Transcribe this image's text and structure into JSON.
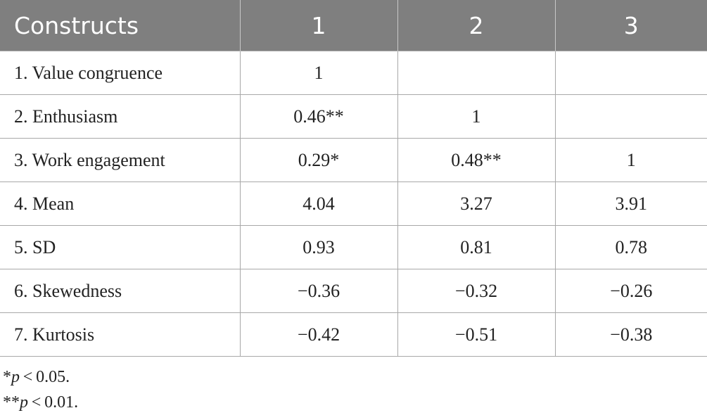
{
  "table": {
    "header": [
      "Constructs",
      "1",
      "2",
      "3"
    ],
    "rows": [
      [
        "1. Value congruence",
        "1",
        null,
        null
      ],
      [
        "2. Enthusiasm",
        "0.46**",
        "1",
        null
      ],
      [
        "3. Work engagement",
        "0.29*",
        "0.48**",
        "1"
      ],
      [
        "4. Mean",
        "4.04",
        "3.27",
        "3.91"
      ],
      [
        "5. SD",
        "0.93",
        "0.81",
        "0.78"
      ],
      [
        "6. Skewedness",
        "−0.36",
        "−0.32",
        "−0.26"
      ],
      [
        "7. Kurtosis",
        "−0.42",
        "−0.51",
        "−0.38"
      ]
    ]
  },
  "notes": [
    {
      "marker": "*",
      "symbol": "p",
      "text": " < 0.05."
    },
    {
      "marker": "**",
      "symbol": "p",
      "text": " < 0.01."
    }
  ]
}
